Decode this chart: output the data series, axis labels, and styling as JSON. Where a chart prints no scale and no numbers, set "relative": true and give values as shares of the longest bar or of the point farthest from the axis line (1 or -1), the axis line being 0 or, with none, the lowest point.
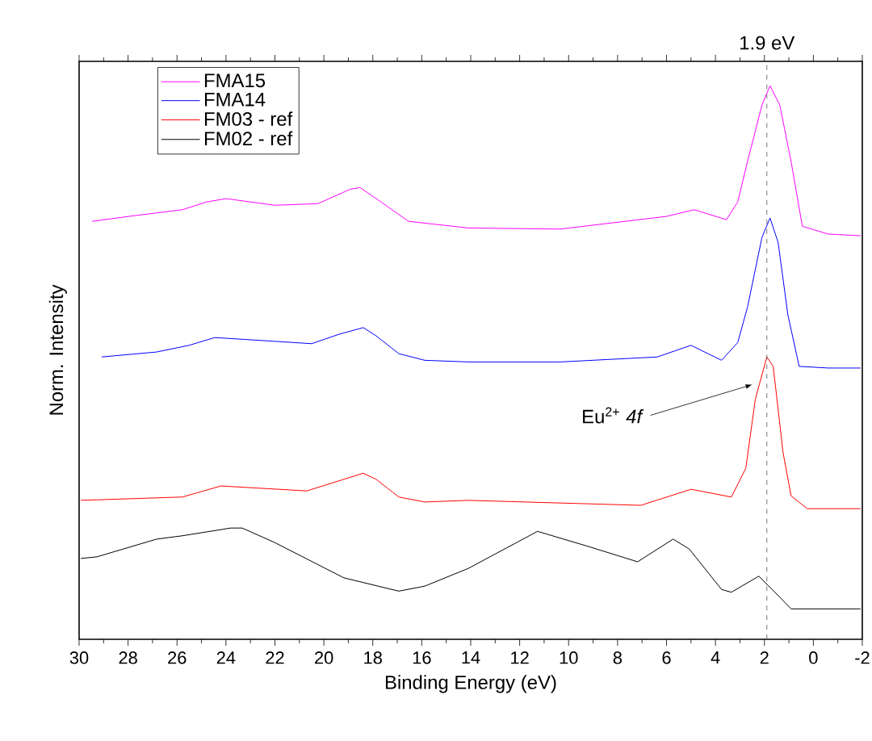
{
  "chart_data": {
    "type": "line",
    "relative": true,
    "xlabel": "Binding Energy (eV)",
    "ylabel": "Norm. Intensity",
    "xlim": [
      30,
      -2
    ],
    "xticks": [
      30,
      28,
      26,
      24,
      22,
      20,
      18,
      16,
      14,
      12,
      10,
      8,
      6,
      4,
      2,
      0,
      -2
    ],
    "legend": "top left",
    "ref_lines": [
      {
        "axis": "x",
        "value": 1.9,
        "label": "1.9 eV",
        "color": "#555555",
        "line_style": "dashed"
      }
    ],
    "annotations": [
      {
        "text": "Eu$^{2+}$ *4f*",
        "x": 2.5,
        "y": 0.46
      }
    ],
    "series": [
      {
        "name": "FMA15",
        "color": "#ff00ff",
        "x": [
          29.47,
          27.96,
          25.78,
          24.79,
          24.0,
          22.0,
          20.24,
          18.92,
          18.52,
          17.86,
          16.54,
          14.1,
          10.34,
          5.99,
          4.87,
          3.55,
          3.09,
          2.69,
          2.1,
          1.77,
          1.37,
          0.91,
          0.45,
          -0.61,
          -1.93
        ],
        "values": [
          0.755,
          0.764,
          0.776,
          0.79,
          0.796,
          0.784,
          0.787,
          0.813,
          0.816,
          0.796,
          0.755,
          0.743,
          0.741,
          0.764,
          0.776,
          0.758,
          0.79,
          0.863,
          0.965,
          1.0,
          0.965,
          0.863,
          0.746,
          0.732,
          0.729
        ]
      },
      {
        "name": "FMA14",
        "color": "#0000ff",
        "x": [
          29.08,
          26.83,
          25.51,
          24.46,
          23.34,
          20.5,
          19.38,
          18.39,
          17.86,
          16.94,
          15.88,
          14.1,
          10.34,
          6.38,
          5.0,
          3.75,
          3.09,
          2.69,
          2.1,
          1.77,
          1.44,
          1.04,
          0.58,
          -0.61,
          -1.93
        ],
        "values": [
          0.51,
          0.519,
          0.531,
          0.545,
          0.542,
          0.534,
          0.551,
          0.563,
          0.548,
          0.516,
          0.504,
          0.501,
          0.501,
          0.51,
          0.531,
          0.504,
          0.536,
          0.6,
          0.726,
          0.761,
          0.717,
          0.586,
          0.493,
          0.49,
          0.49
        ]
      },
      {
        "name": "FM03 - ref",
        "color": "#ff0000",
        "x": [
          29.93,
          25.78,
          24.2,
          20.7,
          18.39,
          17.86,
          16.94,
          15.88,
          14.1,
          7.05,
          5.0,
          3.35,
          2.76,
          2.37,
          1.9,
          1.64,
          1.24,
          0.91,
          0.25,
          -1.93
        ],
        "values": [
          0.251,
          0.257,
          0.277,
          0.268,
          0.3,
          0.289,
          0.257,
          0.248,
          0.251,
          0.242,
          0.271,
          0.257,
          0.309,
          0.434,
          0.51,
          0.493,
          0.338,
          0.259,
          0.236,
          0.236
        ]
      },
      {
        "name": "FM02 - ref",
        "color": "#000000",
        "x": [
          29.93,
          29.27,
          26.83,
          25.78,
          23.8,
          23.34,
          22.02,
          19.18,
          16.94,
          15.88,
          14.1,
          11.27,
          9.29,
          7.18,
          5.73,
          5.07,
          3.75,
          3.35,
          2.23,
          1.57,
          0.91,
          -1.93
        ],
        "values": [
          0.146,
          0.149,
          0.181,
          0.187,
          0.201,
          0.201,
          0.175,
          0.111,
          0.087,
          0.096,
          0.128,
          0.195,
          0.169,
          0.14,
          0.181,
          0.163,
          0.09,
          0.085,
          0.114,
          0.085,
          0.055,
          0.055
        ]
      }
    ]
  }
}
